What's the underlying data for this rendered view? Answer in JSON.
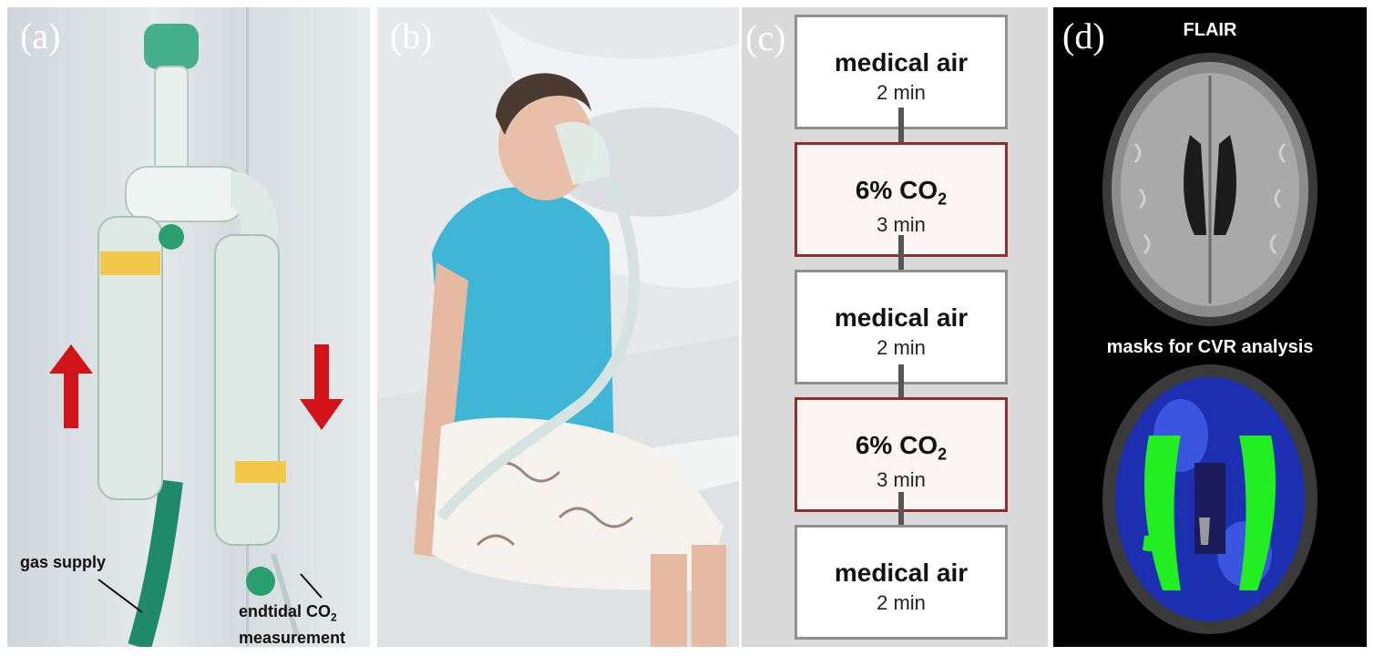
{
  "panels": {
    "a": {
      "label": "(a)",
      "annotations": {
        "gas_supply": "gas supply",
        "endtidal_line1_prefix": "endtidal CO",
        "endtidal_line1_sub": "2",
        "endtidal_line2": "measurement"
      }
    },
    "b": {
      "label": "(b)"
    },
    "c": {
      "label": "(c)",
      "steps": [
        {
          "title": "medical air",
          "sub": "",
          "duration": "2 min"
        },
        {
          "title": "6% CO",
          "sub": "2",
          "duration": "3 min"
        },
        {
          "title": "medical air",
          "sub": "",
          "duration": "2 min"
        },
        {
          "title": "6% CO",
          "sub": "2",
          "duration": "3 min"
        },
        {
          "title": "medical air",
          "sub": "",
          "duration": "2 min"
        }
      ]
    },
    "d": {
      "label": "(d)",
      "top_title": "FLAIR",
      "bottom_title": "masks for CVR analysis"
    }
  },
  "colors": {
    "arrow_red": "#d0141a",
    "tube_green": "#1f8a6a",
    "co2_border": "#8a2e2e",
    "mask_green": "#22ee22",
    "mask_blue": "#1b2fb0"
  }
}
